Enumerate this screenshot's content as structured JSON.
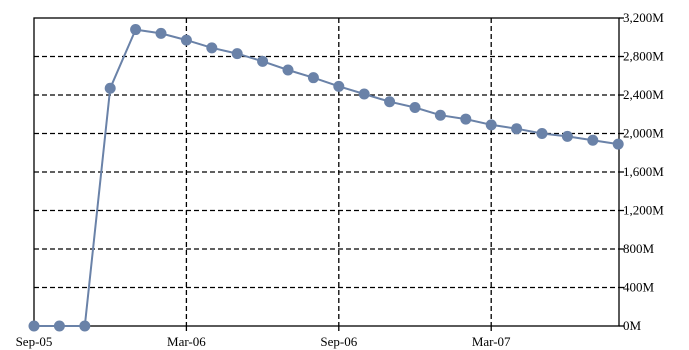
{
  "chart_data": {
    "type": "line",
    "title": "",
    "xlabel": "",
    "ylabel": "",
    "x_ticks": [
      "Sep-05",
      "Mar-06",
      "Sep-06",
      "Mar-07"
    ],
    "y_ticks": [
      "0M",
      "400M",
      "800M",
      "1,200M",
      "1,600M",
      "2,000M",
      "2,400M",
      "2,800M",
      "3,200M"
    ],
    "ylim": [
      0,
      3200
    ],
    "y_unit": "M",
    "y_axis_side": "right",
    "grid": true,
    "legend": "none",
    "line_color": "#6a82a8",
    "marker_color": "#6a82a8",
    "series": [
      {
        "x": [
          "2005-09",
          "2005-10",
          "2005-11",
          "2005-12",
          "2006-01",
          "2006-02",
          "2006-03",
          "2006-04",
          "2006-05",
          "2006-06",
          "2006-07",
          "2006-08",
          "2006-09",
          "2006-10",
          "2006-11",
          "2006-12",
          "2007-01",
          "2007-02",
          "2007-03",
          "2007-04",
          "2007-05",
          "2007-06",
          "2007-07",
          "2007-08"
        ],
        "values": [
          0,
          0,
          0,
          2470,
          3080,
          3040,
          2970,
          2890,
          2830,
          2750,
          2660,
          2580,
          2490,
          2410,
          2330,
          2270,
          2190,
          2150,
          2090,
          2050,
          2000,
          1970,
          1930,
          1890
        ]
      }
    ]
  }
}
